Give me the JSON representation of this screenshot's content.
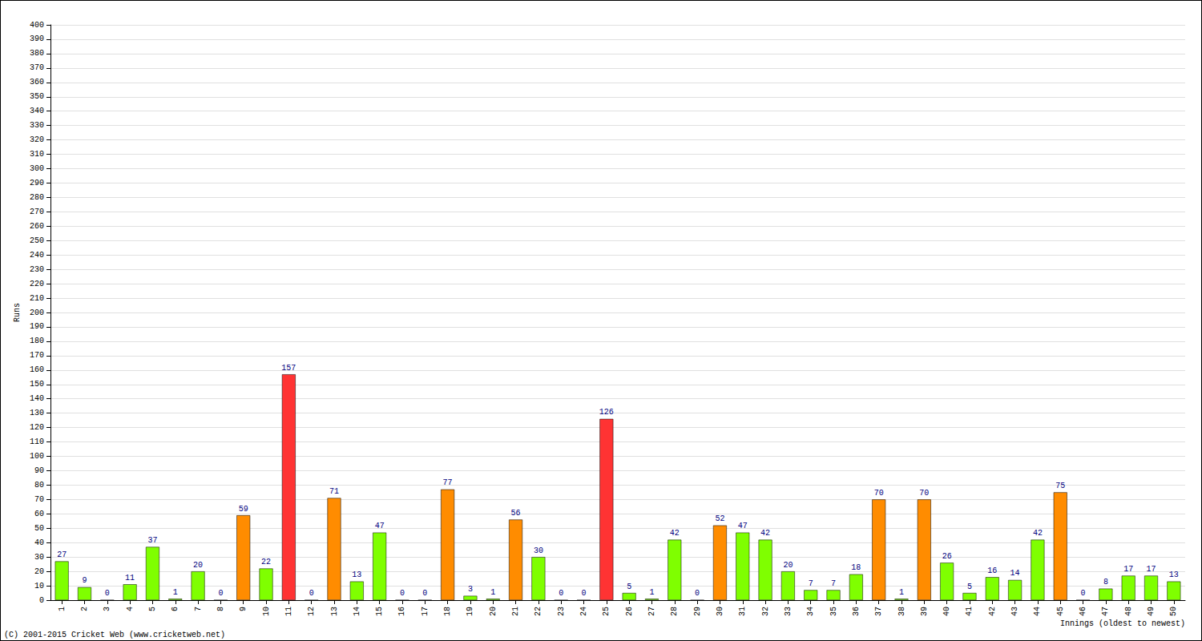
{
  "chart_data": {
    "type": "bar",
    "x_label": "Innings (oldest to newest)",
    "y_label": "Runs",
    "annotations": [
      "(C) 2001-2015 Cricket Web (www.cricketweb.net)"
    ],
    "categories": [
      "1",
      "2",
      "3",
      "4",
      "5",
      "6",
      "7",
      "8",
      "9",
      "10",
      "11",
      "12",
      "13",
      "14",
      "15",
      "16",
      "17",
      "18",
      "19",
      "20",
      "21",
      "22",
      "23",
      "24",
      "25",
      "26",
      "27",
      "28",
      "29",
      "30",
      "31",
      "32",
      "33",
      "34",
      "35",
      "36",
      "37",
      "38",
      "39",
      "40",
      "41",
      "42",
      "43",
      "44",
      "45",
      "46",
      "47",
      "48",
      "49",
      "50"
    ],
    "values": [
      27,
      9,
      0,
      11,
      37,
      1,
      20,
      0,
      59,
      22,
      157,
      0,
      71,
      13,
      47,
      0,
      0,
      77,
      3,
      1,
      56,
      30,
      0,
      0,
      126,
      5,
      1,
      42,
      0,
      52,
      47,
      42,
      20,
      7,
      7,
      18,
      70,
      1,
      70,
      26,
      5,
      16,
      14,
      42,
      75,
      0,
      8,
      17,
      17,
      13
    ],
    "colors": [
      "#7fff00",
      "#7fff00",
      "#7fff00",
      "#7fff00",
      "#7fff00",
      "#7fff00",
      "#7fff00",
      "#7fff00",
      "#ff8c00",
      "#7fff00",
      "#ff3333",
      "#7fff00",
      "#ff8c00",
      "#7fff00",
      "#7fff00",
      "#7fff00",
      "#7fff00",
      "#ff8c00",
      "#7fff00",
      "#7fff00",
      "#ff8c00",
      "#7fff00",
      "#7fff00",
      "#7fff00",
      "#ff3333",
      "#7fff00",
      "#7fff00",
      "#7fff00",
      "#7fff00",
      "#ff8c00",
      "#7fff00",
      "#7fff00",
      "#7fff00",
      "#7fff00",
      "#7fff00",
      "#7fff00",
      "#ff8c00",
      "#7fff00",
      "#ff8c00",
      "#7fff00",
      "#7fff00",
      "#7fff00",
      "#7fff00",
      "#7fff00",
      "#ff8c00",
      "#7fff00",
      "#7fff00",
      "#7fff00",
      "#7fff00",
      "#7fff00"
    ],
    "ylim": [
      0,
      400
    ],
    "yticks": [
      0,
      10,
      20,
      30,
      40,
      50,
      60,
      70,
      80,
      90,
      100,
      110,
      120,
      130,
      140,
      150,
      160,
      170,
      180,
      190,
      200,
      210,
      220,
      230,
      240,
      250,
      260,
      270,
      280,
      290,
      300,
      310,
      320,
      330,
      340,
      350,
      360,
      370,
      380,
      390,
      400
    ],
    "grid": true,
    "data_labels": true
  }
}
